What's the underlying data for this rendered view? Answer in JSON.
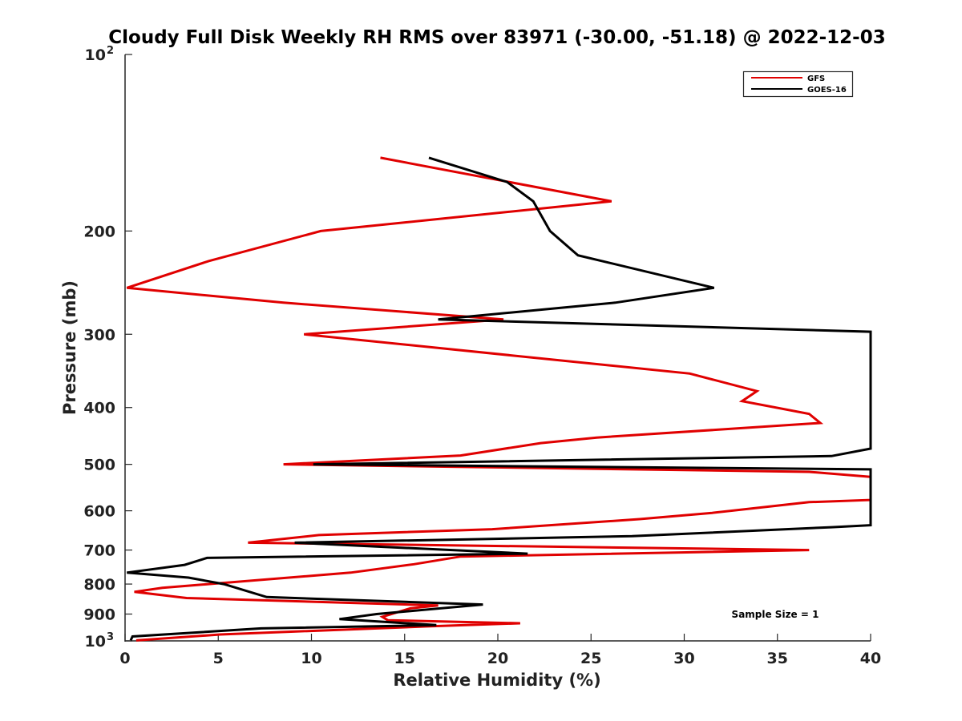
{
  "chart_data": {
    "type": "line",
    "title": "Cloudy Full Disk Weekly RH RMS over 83971 (-30.00, -51.18) @ 2022-12-03",
    "xlabel": "Relative Humidity (%)",
    "ylabel": "Pressure (mb)",
    "xlim": [
      0,
      40
    ],
    "ylim": [
      100,
      1000
    ],
    "y_scale": "log",
    "y_reversed": true,
    "grid": false,
    "legend_placement": "top-right",
    "x_ticks": [
      0,
      5,
      10,
      15,
      20,
      25,
      30,
      35,
      40
    ],
    "y_ticks": [
      {
        "value": 100,
        "label": "10",
        "exp": "2"
      },
      {
        "value": 200,
        "label": "200",
        "exp": ""
      },
      {
        "value": 300,
        "label": "300",
        "exp": ""
      },
      {
        "value": 400,
        "label": "400",
        "exp": ""
      },
      {
        "value": 500,
        "label": "500",
        "exp": ""
      },
      {
        "value": 600,
        "label": "600",
        "exp": ""
      },
      {
        "value": 700,
        "label": "700",
        "exp": ""
      },
      {
        "value": 800,
        "label": "800",
        "exp": ""
      },
      {
        "value": 900,
        "label": "900",
        "exp": ""
      },
      {
        "value": 1000,
        "label": "10",
        "exp": "3"
      }
    ],
    "series": [
      {
        "name": "GFS",
        "color": "#e00000",
        "points": [
          [
            13.7,
            150
          ],
          [
            26.1,
            178
          ],
          [
            10.5,
            200
          ],
          [
            4.5,
            225
          ],
          [
            0.1,
            250
          ],
          [
            8.5,
            265
          ],
          [
            20.3,
            283
          ],
          [
            9.6,
            300
          ],
          [
            30.3,
            350
          ],
          [
            33.9,
            375
          ],
          [
            33.1,
            390
          ],
          [
            36.7,
            410
          ],
          [
            37.3,
            425
          ],
          [
            25.3,
            450
          ],
          [
            22.3,
            460
          ],
          [
            18.0,
            483
          ],
          [
            8.5,
            500
          ],
          [
            36.7,
            515
          ],
          [
            40.0,
            525
          ],
          [
            40.0,
            575
          ],
          [
            36.7,
            580
          ],
          [
            31.5,
            605
          ],
          [
            27.6,
            620
          ],
          [
            19.7,
            645
          ],
          [
            10.4,
            660
          ],
          [
            6.6,
            680
          ],
          [
            36.7,
            700
          ],
          [
            18.0,
            718
          ],
          [
            15.5,
            740
          ],
          [
            12.1,
            765
          ],
          [
            2.0,
            812
          ],
          [
            0.5,
            825
          ],
          [
            3.3,
            845
          ],
          [
            16.8,
            870
          ],
          [
            15.3,
            880
          ],
          [
            13.8,
            910
          ],
          [
            14.1,
            922
          ],
          [
            21.2,
            933
          ],
          [
            16.1,
            945
          ],
          [
            5.1,
            975
          ],
          [
            0.6,
            998
          ]
        ]
      },
      {
        "name": "GOES-16",
        "color": "#000000",
        "points": [
          [
            16.3,
            150
          ],
          [
            20.5,
            165
          ],
          [
            21.9,
            178
          ],
          [
            22.8,
            200
          ],
          [
            24.3,
            220
          ],
          [
            31.6,
            250
          ],
          [
            26.3,
            265
          ],
          [
            16.8,
            283
          ],
          [
            40.0,
            297
          ],
          [
            40.0,
            470
          ],
          [
            37.9,
            484
          ],
          [
            10.1,
            500
          ],
          [
            40.0,
            510
          ],
          [
            40.0,
            635
          ],
          [
            37.9,
            640
          ],
          [
            27.2,
            663
          ],
          [
            9.1,
            680
          ],
          [
            21.6,
            710
          ],
          [
            4.4,
            722
          ],
          [
            3.2,
            742
          ],
          [
            0.1,
            765
          ],
          [
            3.4,
            780
          ],
          [
            5.3,
            800
          ],
          [
            7.6,
            842
          ],
          [
            19.2,
            867
          ],
          [
            13.5,
            900
          ],
          [
            11.5,
            918
          ],
          [
            16.7,
            940
          ],
          [
            7.3,
            952
          ],
          [
            0.4,
            983
          ],
          [
            0.3,
            998
          ]
        ]
      }
    ],
    "annotations": [
      "Sample Size = 1"
    ]
  }
}
